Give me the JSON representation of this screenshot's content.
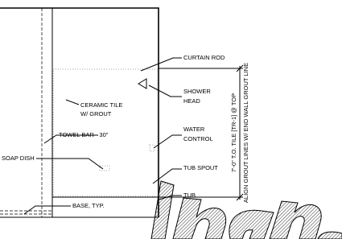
{
  "callouts": [
    {
      "lines": [
        "CURTAIN ROD"
      ]
    },
    {
      "lines": [
        "SHOWER",
        "HEAD"
      ]
    },
    {
      "lines": [
        "CERAMIC TILE",
        "W/ GROUT"
      ]
    },
    {
      "lines": [
        "TOWEL BAR - 30\""
      ]
    },
    {
      "lines": [
        "WATER",
        "CONTROL"
      ]
    },
    {
      "lines": [
        "SOAP DISH"
      ]
    },
    {
      "lines": [
        "TUB SPOUT"
      ]
    },
    {
      "lines": [
        "TUB"
      ]
    },
    {
      "lines": [
        "BASE, TYP."
      ]
    }
  ],
  "dimension": {
    "lines": [
      "7'-0\" T.O. TILE [TR-1] @ TOP",
      "ALIGN GROUT LINES W/ END WALL GROUT LINE"
    ]
  }
}
